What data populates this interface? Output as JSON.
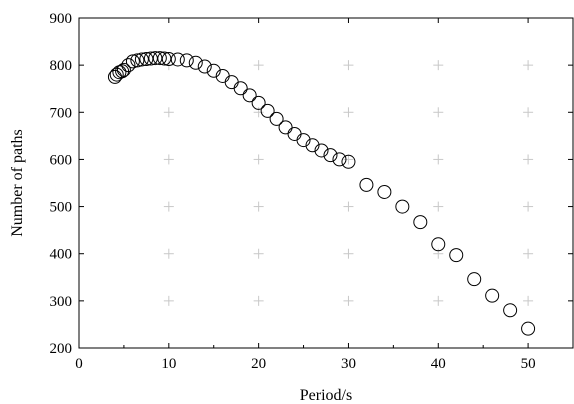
{
  "chart_data": {
    "type": "scatter",
    "title": "",
    "xlabel": "Period/s",
    "ylabel": "Number of paths",
    "xlim": [
      0,
      55
    ],
    "ylim": [
      200,
      900
    ],
    "xticks": [
      0,
      10,
      20,
      30,
      40,
      50
    ],
    "yticks": [
      200,
      300,
      400,
      500,
      600,
      700,
      800,
      900
    ],
    "grid": "plus markers at major tick intersections",
    "marker": "open circle",
    "series": [
      {
        "x": [
          4.0,
          4.2,
          4.5,
          4.8,
          5.0,
          5.5,
          6.0,
          6.5,
          7.0,
          7.5,
          8.0,
          8.5,
          9.0,
          9.5,
          10.0,
          11.0,
          12.0,
          13.0,
          14.0,
          15.0,
          16.0,
          17.0,
          18.0,
          19.0,
          20.0,
          21.0,
          22.0,
          23.0,
          24.0,
          25.0,
          26.0,
          27.0,
          28.0,
          29.0,
          30.0,
          32.0,
          34.0,
          36.0,
          38.0,
          40.0,
          42.0,
          44.0,
          46.0,
          48.0,
          50.0
        ],
        "y": [
          775,
          780,
          785,
          787,
          790,
          800,
          808,
          810,
          812,
          813,
          814,
          815,
          815,
          814,
          813,
          812,
          810,
          805,
          797,
          788,
          777,
          764,
          751,
          736,
          720,
          703,
          686,
          668,
          654,
          641,
          630,
          619,
          609,
          600,
          595,
          546,
          531,
          500,
          467,
          420,
          397,
          346,
          311,
          280,
          241
        ]
      }
    ]
  }
}
